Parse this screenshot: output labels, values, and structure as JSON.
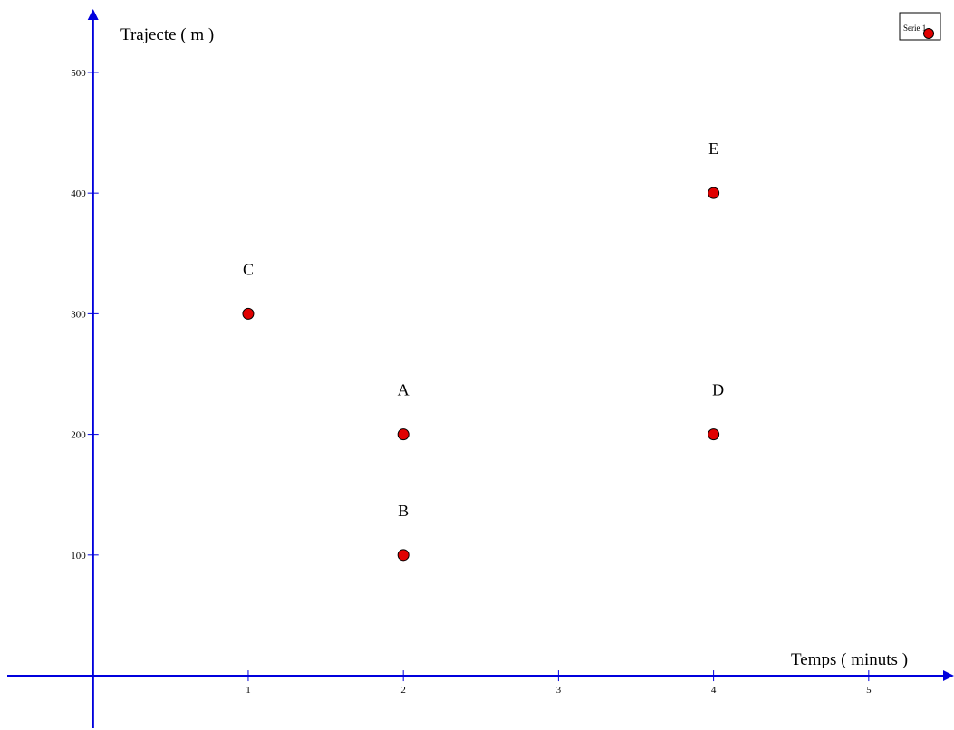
{
  "chart_data": {
    "type": "scatter",
    "xlabel": "Temps ( minuts )",
    "ylabel": "Trajecte ( m )",
    "xlim": [
      -0.6,
      5.55
    ],
    "ylim": [
      -45,
      560
    ],
    "x_ticks": [
      1,
      2,
      3,
      4,
      5
    ],
    "y_ticks": [
      100,
      200,
      300,
      400,
      500
    ],
    "grid": false,
    "legend_position": "top-right",
    "series": [
      {
        "name": "Serie 1",
        "color": "#e00000",
        "points": [
          {
            "label": "A",
            "x": 2,
            "y": 200
          },
          {
            "label": "B",
            "x": 2,
            "y": 100
          },
          {
            "label": "C",
            "x": 1,
            "y": 300
          },
          {
            "label": "D",
            "x": 4,
            "y": 200
          },
          {
            "label": "E",
            "x": 4,
            "y": 400
          }
        ]
      }
    ],
    "axis_color": "#0000dd"
  }
}
